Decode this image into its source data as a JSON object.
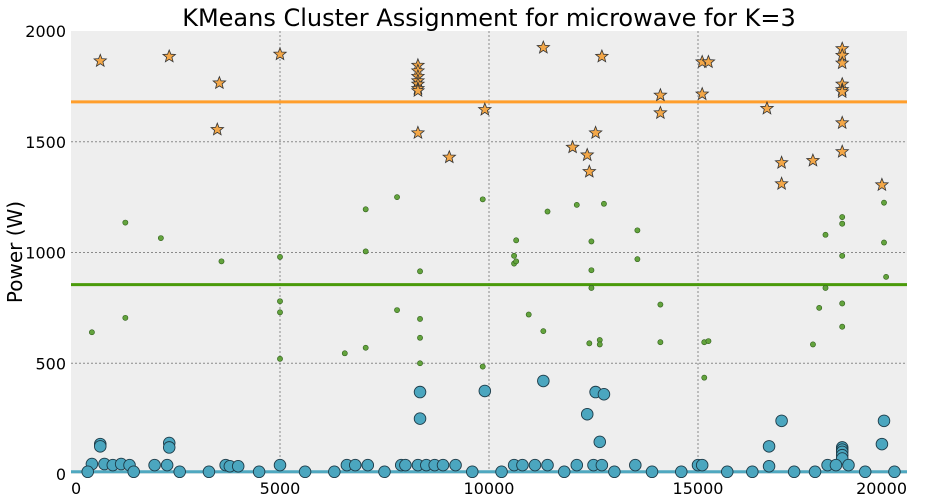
{
  "chart_data": {
    "type": "scatter",
    "title": "KMeans Cluster Assignment for microwave for K=3",
    "xlabel": "",
    "ylabel": "Power (W)",
    "xlim": [
      0,
      20000
    ],
    "ylim": [
      0,
      2000
    ],
    "x_ticks": [
      "0",
      "5000",
      "10000",
      "15000",
      "20000"
    ],
    "y_ticks": [
      "0",
      "500",
      "1000",
      "1500",
      "2000"
    ],
    "grid": true,
    "legend": "none",
    "centroids": [
      {
        "value": 1680,
        "color": "#ff9e2c"
      },
      {
        "value": 855,
        "color": "#4a9a0a"
      },
      {
        "value": 10,
        "color": "#4fa8c0"
      }
    ],
    "series": [
      {
        "marker": "star",
        "color": "#f3a748",
        "edge": "#333333",
        "points": [
          [
            700,
            1865
          ],
          [
            2350,
            1885
          ],
          [
            3550,
            1765
          ],
          [
            3500,
            1555
          ],
          [
            5000,
            1895
          ],
          [
            8300,
            1845
          ],
          [
            8300,
            1820
          ],
          [
            8300,
            1795
          ],
          [
            8300,
            1775
          ],
          [
            8300,
            1760
          ],
          [
            8300,
            1740
          ],
          [
            8300,
            1730
          ],
          [
            8300,
            1540
          ],
          [
            9050,
            1430
          ],
          [
            9900,
            1645
          ],
          [
            11300,
            1925
          ],
          [
            12000,
            1475
          ],
          [
            12350,
            1440
          ],
          [
            12400,
            1365
          ],
          [
            12550,
            1540
          ],
          [
            12700,
            1885
          ],
          [
            14100,
            1710
          ],
          [
            14100,
            1630
          ],
          [
            15100,
            1860
          ],
          [
            15250,
            1860
          ],
          [
            15100,
            1715
          ],
          [
            16650,
            1650
          ],
          [
            17000,
            1405
          ],
          [
            17000,
            1310
          ],
          [
            17750,
            1415
          ],
          [
            18450,
            1920
          ],
          [
            18450,
            1890
          ],
          [
            18450,
            1855
          ],
          [
            18450,
            1760
          ],
          [
            18450,
            1735
          ],
          [
            18450,
            1725
          ],
          [
            18450,
            1585
          ],
          [
            18450,
            1455
          ],
          [
            19400,
            1305
          ]
        ]
      },
      {
        "marker": "dot",
        "color": "#63a33d",
        "edge": "#2f5e1a",
        "points": [
          [
            500,
            640
          ],
          [
            1300,
            1135
          ],
          [
            1300,
            705
          ],
          [
            2150,
            1065
          ],
          [
            3600,
            960
          ],
          [
            5000,
            980
          ],
          [
            5000,
            780
          ],
          [
            5000,
            730
          ],
          [
            5000,
            520
          ],
          [
            6550,
            545
          ],
          [
            7050,
            1195
          ],
          [
            7050,
            1005
          ],
          [
            7050,
            570
          ],
          [
            7800,
            1250
          ],
          [
            7800,
            740
          ],
          [
            8350,
            915
          ],
          [
            8350,
            700
          ],
          [
            8350,
            615
          ],
          [
            8350,
            500
          ],
          [
            9850,
            1240
          ],
          [
            9850,
            485
          ],
          [
            10650,
            1055
          ],
          [
            10600,
            985
          ],
          [
            10600,
            950
          ],
          [
            10650,
            960
          ],
          [
            10950,
            720
          ],
          [
            11300,
            645
          ],
          [
            11400,
            1185
          ],
          [
            12100,
            1215
          ],
          [
            12400,
            590
          ],
          [
            12450,
            1050
          ],
          [
            12450,
            920
          ],
          [
            12450,
            840
          ],
          [
            12650,
            605
          ],
          [
            12650,
            585
          ],
          [
            12750,
            1220
          ],
          [
            13550,
            1100
          ],
          [
            13550,
            970
          ],
          [
            14100,
            765
          ],
          [
            14100,
            595
          ],
          [
            15150,
            595
          ],
          [
            15250,
            600
          ],
          [
            15150,
            435
          ],
          [
            17750,
            585
          ],
          [
            17900,
            750
          ],
          [
            18050,
            1080
          ],
          [
            18050,
            840
          ],
          [
            18450,
            1160
          ],
          [
            18450,
            1130
          ],
          [
            18450,
            985
          ],
          [
            18450,
            770
          ],
          [
            18450,
            665
          ],
          [
            19450,
            1225
          ],
          [
            19450,
            1045
          ],
          [
            19500,
            890
          ]
        ]
      },
      {
        "marker": "circle",
        "color": "#4ba6bf",
        "edge": "#1d3a47",
        "points": [
          [
            700,
            135
          ],
          [
            700,
            125
          ],
          [
            2350,
            140
          ],
          [
            2350,
            120
          ],
          [
            8350,
            370
          ],
          [
            8350,
            250
          ],
          [
            9900,
            375
          ],
          [
            11300,
            420
          ],
          [
            12350,
            270
          ],
          [
            12550,
            370
          ],
          [
            12650,
            145
          ],
          [
            12750,
            360
          ],
          [
            16700,
            125
          ],
          [
            17000,
            240
          ],
          [
            18450,
            120
          ],
          [
            18450,
            110
          ],
          [
            18450,
            100
          ],
          [
            18450,
            85
          ],
          [
            18450,
            70
          ],
          [
            19400,
            135
          ],
          [
            19450,
            240
          ],
          [
            500,
            45
          ],
          [
            800,
            45
          ],
          [
            1000,
            40
          ],
          [
            1200,
            45
          ],
          [
            1400,
            40
          ],
          [
            2000,
            40
          ],
          [
            2300,
            40
          ],
          [
            3700,
            40
          ],
          [
            3800,
            35
          ],
          [
            4000,
            35
          ],
          [
            5000,
            40
          ],
          [
            6600,
            40
          ],
          [
            6800,
            40
          ],
          [
            7100,
            40
          ],
          [
            7900,
            40
          ],
          [
            8000,
            40
          ],
          [
            8300,
            40
          ],
          [
            8500,
            40
          ],
          [
            8700,
            40
          ],
          [
            8900,
            40
          ],
          [
            9200,
            40
          ],
          [
            10600,
            40
          ],
          [
            10800,
            40
          ],
          [
            11100,
            40
          ],
          [
            11400,
            40
          ],
          [
            12100,
            40
          ],
          [
            12500,
            40
          ],
          [
            12700,
            40
          ],
          [
            13500,
            40
          ],
          [
            15000,
            40
          ],
          [
            15100,
            40
          ],
          [
            16700,
            35
          ],
          [
            18100,
            40
          ],
          [
            18300,
            40
          ],
          [
            18600,
            40
          ],
          [
            400,
            10
          ],
          [
            1500,
            10
          ],
          [
            2600,
            10
          ],
          [
            3300,
            10
          ],
          [
            4500,
            10
          ],
          [
            5600,
            10
          ],
          [
            6300,
            10
          ],
          [
            7500,
            10
          ],
          [
            9600,
            10
          ],
          [
            10300,
            10
          ],
          [
            11800,
            10
          ],
          [
            13000,
            10
          ],
          [
            13900,
            10
          ],
          [
            14600,
            10
          ],
          [
            15700,
            10
          ],
          [
            16300,
            10
          ],
          [
            17300,
            10
          ],
          [
            17800,
            10
          ],
          [
            19000,
            10
          ],
          [
            19700,
            10
          ]
        ]
      }
    ]
  }
}
